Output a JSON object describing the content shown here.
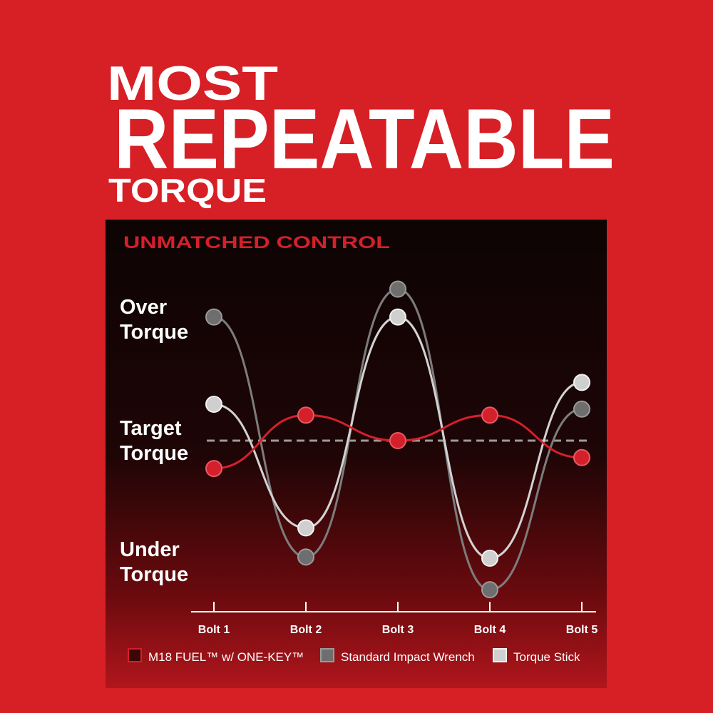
{
  "chart_data": {
    "type": "line",
    "title_lines": [
      "MOST",
      "REPEATABLE",
      "TORQUE"
    ],
    "subtitle": "UNMATCHED CONTROL",
    "categories": [
      "Bolt 1",
      "Bolt 2",
      "Bolt 3",
      "Bolt 4",
      "Bolt 5"
    ],
    "series": [
      {
        "name": "M18 FUEL™ w/ ONE-KEY™",
        "color": "#d4202b",
        "values": [
          -0.23,
          0.21,
          0,
          0.21,
          -0.14
        ]
      },
      {
        "name": "Standard Impact Wrench",
        "color": "#6e6e6e",
        "values": [
          1.02,
          -0.96,
          1.25,
          -1.23,
          0.26
        ]
      },
      {
        "name": "Torque Stick",
        "color": "#cfcfcf",
        "values": [
          0.3,
          -0.72,
          1.02,
          -0.97,
          0.48
        ]
      }
    ],
    "ylim": [
      -1.4,
      1.4
    ],
    "yticks": [
      {
        "value": 1,
        "label": "Over Torque"
      },
      {
        "value": 0,
        "label": "Target Torque"
      },
      {
        "value": -1,
        "label": "Under Torque"
      }
    ],
    "target": 0
  }
}
